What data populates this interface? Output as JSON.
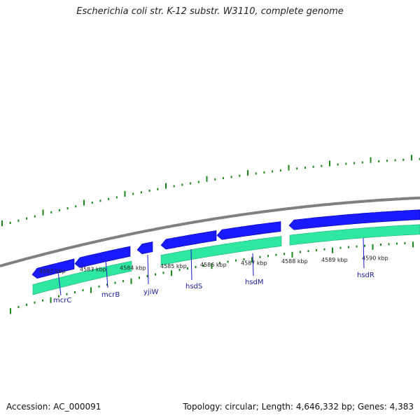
{
  "title": "Escherichia coli str. K-12 substr. W3110, complete genome",
  "footer": {
    "accession": "Accession: AC_000091",
    "stats": "Topology: circular; Length: 4,646,332 bp; Genes: 4,383"
  },
  "colors": {
    "backbone": "#808080",
    "gene_blue": "#1a1aff",
    "gene_green": "#2ee8a0",
    "tick_green": "#1a8a1a",
    "label_line": "#1a1acc"
  },
  "kbp_labels": [
    "4582 kbp",
    "4583 kbp",
    "4584 kbp",
    "4585 kbp",
    "4586 kbp",
    "4587 kbp",
    "4588 kbp",
    "4589 kbp",
    "4590 kbp"
  ],
  "genes": [
    {
      "name": "mcrC"
    },
    {
      "name": "mcrB"
    },
    {
      "name": "yjiW"
    },
    {
      "name": "hsdS"
    },
    {
      "name": "hsdM"
    },
    {
      "name": "hsdR"
    }
  ]
}
